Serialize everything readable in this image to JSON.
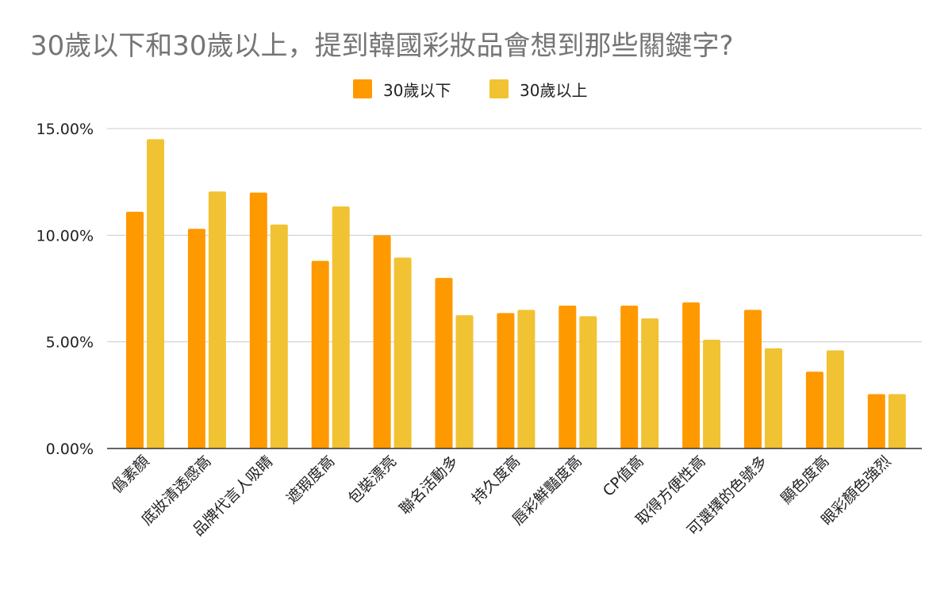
{
  "chart_data": {
    "type": "bar",
    "title": "30歲以下和30歲以上，提到韓國彩妝品會想到那些關鍵字?",
    "xlabel": "",
    "ylabel": "",
    "ylim": [
      0,
      15
    ],
    "y_ticks": [
      "0.00%",
      "5.00%",
      "10.00%",
      "15.00%"
    ],
    "y_tick_values": [
      0,
      5,
      10,
      15
    ],
    "grid": true,
    "legend_position": "top-center",
    "categories": [
      "僞素顏",
      "底妝清透感高",
      "品牌代言人吸睛",
      "遮瑕度高",
      "包裝漂亮",
      "聯名活動多",
      "持久度高",
      "唇彩鮮豔度高",
      "CP值高",
      "取得方便性高",
      "可選擇的色號多",
      "顯色度高",
      "眼彩顏色強烈"
    ],
    "series": [
      {
        "name": "30歲以下",
        "color": "#FF9900",
        "values": [
          11.1,
          10.3,
          12.0,
          8.8,
          10.0,
          8.0,
          6.35,
          6.7,
          6.7,
          6.85,
          6.5,
          3.6,
          2.55
        ]
      },
      {
        "name": "30歲以上",
        "color": "#F1C232",
        "values": [
          14.5,
          12.05,
          10.5,
          11.35,
          8.95,
          6.25,
          6.5,
          6.2,
          6.1,
          5.1,
          4.7,
          4.6,
          2.55
        ]
      }
    ]
  }
}
